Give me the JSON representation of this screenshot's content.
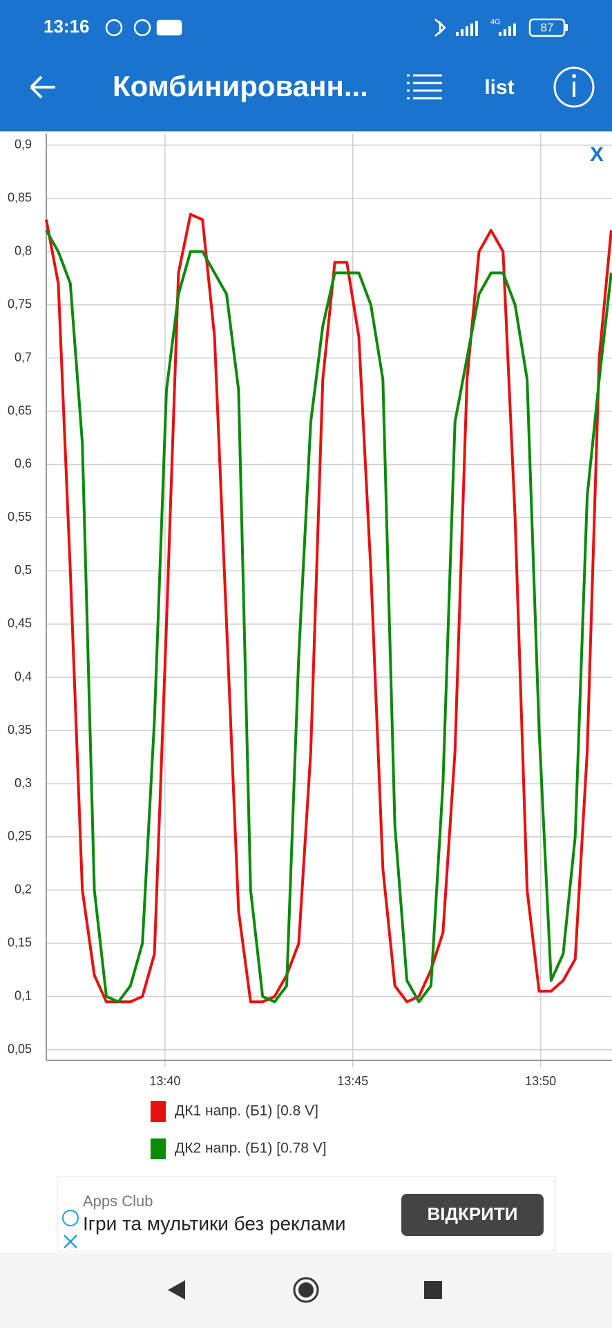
{
  "status_bar": {
    "time": "13:16",
    "network": "4G",
    "battery": "87"
  },
  "app_bar": {
    "title": "Комбинированн...",
    "menu_label": "list"
  },
  "chart_data": {
    "type": "line",
    "close_label": "X",
    "x": [
      36.84,
      37.16,
      37.48,
      37.8,
      38.12,
      38.44,
      38.76,
      39.08,
      39.4,
      39.72,
      40.04,
      40.36,
      40.68,
      41.0,
      41.32,
      41.64,
      41.96,
      42.28,
      42.6,
      42.92,
      43.24,
      43.56,
      43.88,
      44.2,
      44.52,
      44.84,
      45.16,
      45.48,
      45.8,
      46.12,
      46.44,
      46.76,
      47.08,
      47.4,
      47.72,
      48.04,
      48.36,
      48.68,
      49.0,
      49.32,
      49.64,
      49.96,
      50.28,
      50.6,
      50.92,
      51.24,
      51.56,
      51.88
    ],
    "xlim": [
      36.84,
      51.9
    ],
    "xticks": [
      {
        "value": 40,
        "label": "13:40"
      },
      {
        "value": 45,
        "label": "13:45"
      },
      {
        "value": 50,
        "label": "13:50"
      }
    ],
    "ylim": [
      0.04,
      0.911
    ],
    "yticks": [
      {
        "value": 0.05,
        "label": "0,05"
      },
      {
        "value": 0.1,
        "label": "0,1"
      },
      {
        "value": 0.15,
        "label": "0,15"
      },
      {
        "value": 0.2,
        "label": "0,2"
      },
      {
        "value": 0.25,
        "label": "0,25"
      },
      {
        "value": 0.3,
        "label": "0,3"
      },
      {
        "value": 0.35,
        "label": "0,35"
      },
      {
        "value": 0.4,
        "label": "0,4"
      },
      {
        "value": 0.45,
        "label": "0,45"
      },
      {
        "value": 0.5,
        "label": "0,5"
      },
      {
        "value": 0.55,
        "label": "0,55"
      },
      {
        "value": 0.6,
        "label": "0,6"
      },
      {
        "value": 0.65,
        "label": "0,65"
      },
      {
        "value": 0.7,
        "label": "0,7"
      },
      {
        "value": 0.75,
        "label": "0,75"
      },
      {
        "value": 0.8,
        "label": "0,8"
      },
      {
        "value": 0.85,
        "label": "0,85"
      },
      {
        "value": 0.9,
        "label": "0,9"
      }
    ],
    "grid": true,
    "series": [
      {
        "name": "ДК1 напр. (Б1) [0.8 V]",
        "color": "#e81010",
        "values": [
          0.83,
          0.77,
          0.5,
          0.2,
          0.12,
          0.095,
          0.095,
          0.095,
          0.1,
          0.14,
          0.45,
          0.78,
          0.835,
          0.83,
          0.72,
          0.45,
          0.18,
          0.095,
          0.095,
          0.1,
          0.12,
          0.15,
          0.33,
          0.68,
          0.79,
          0.79,
          0.72,
          0.5,
          0.22,
          0.11,
          0.095,
          0.1,
          0.125,
          0.16,
          0.33,
          0.68,
          0.8,
          0.82,
          0.8,
          0.55,
          0.2,
          0.105,
          0.105,
          0.115,
          0.135,
          0.33,
          0.7,
          0.82
        ]
      },
      {
        "name": "ДК2 напр. (Б1) [0.78 V]",
        "color": "#0b8a0b",
        "values": [
          0.82,
          0.8,
          0.77,
          0.62,
          0.2,
          0.1,
          0.095,
          0.11,
          0.15,
          0.36,
          0.67,
          0.76,
          0.8,
          0.8,
          0.78,
          0.76,
          0.67,
          0.2,
          0.1,
          0.095,
          0.11,
          0.42,
          0.64,
          0.73,
          0.78,
          0.78,
          0.78,
          0.75,
          0.68,
          0.26,
          0.115,
          0.095,
          0.11,
          0.3,
          0.64,
          0.7,
          0.76,
          0.78,
          0.78,
          0.75,
          0.68,
          0.35,
          0.115,
          0.14,
          0.25,
          0.57,
          0.68,
          0.78
        ]
      }
    ]
  },
  "ad": {
    "sponsor": "Apps Club",
    "text": "Ігри та мультики без реклами",
    "button": "ВІДКРИТИ"
  }
}
